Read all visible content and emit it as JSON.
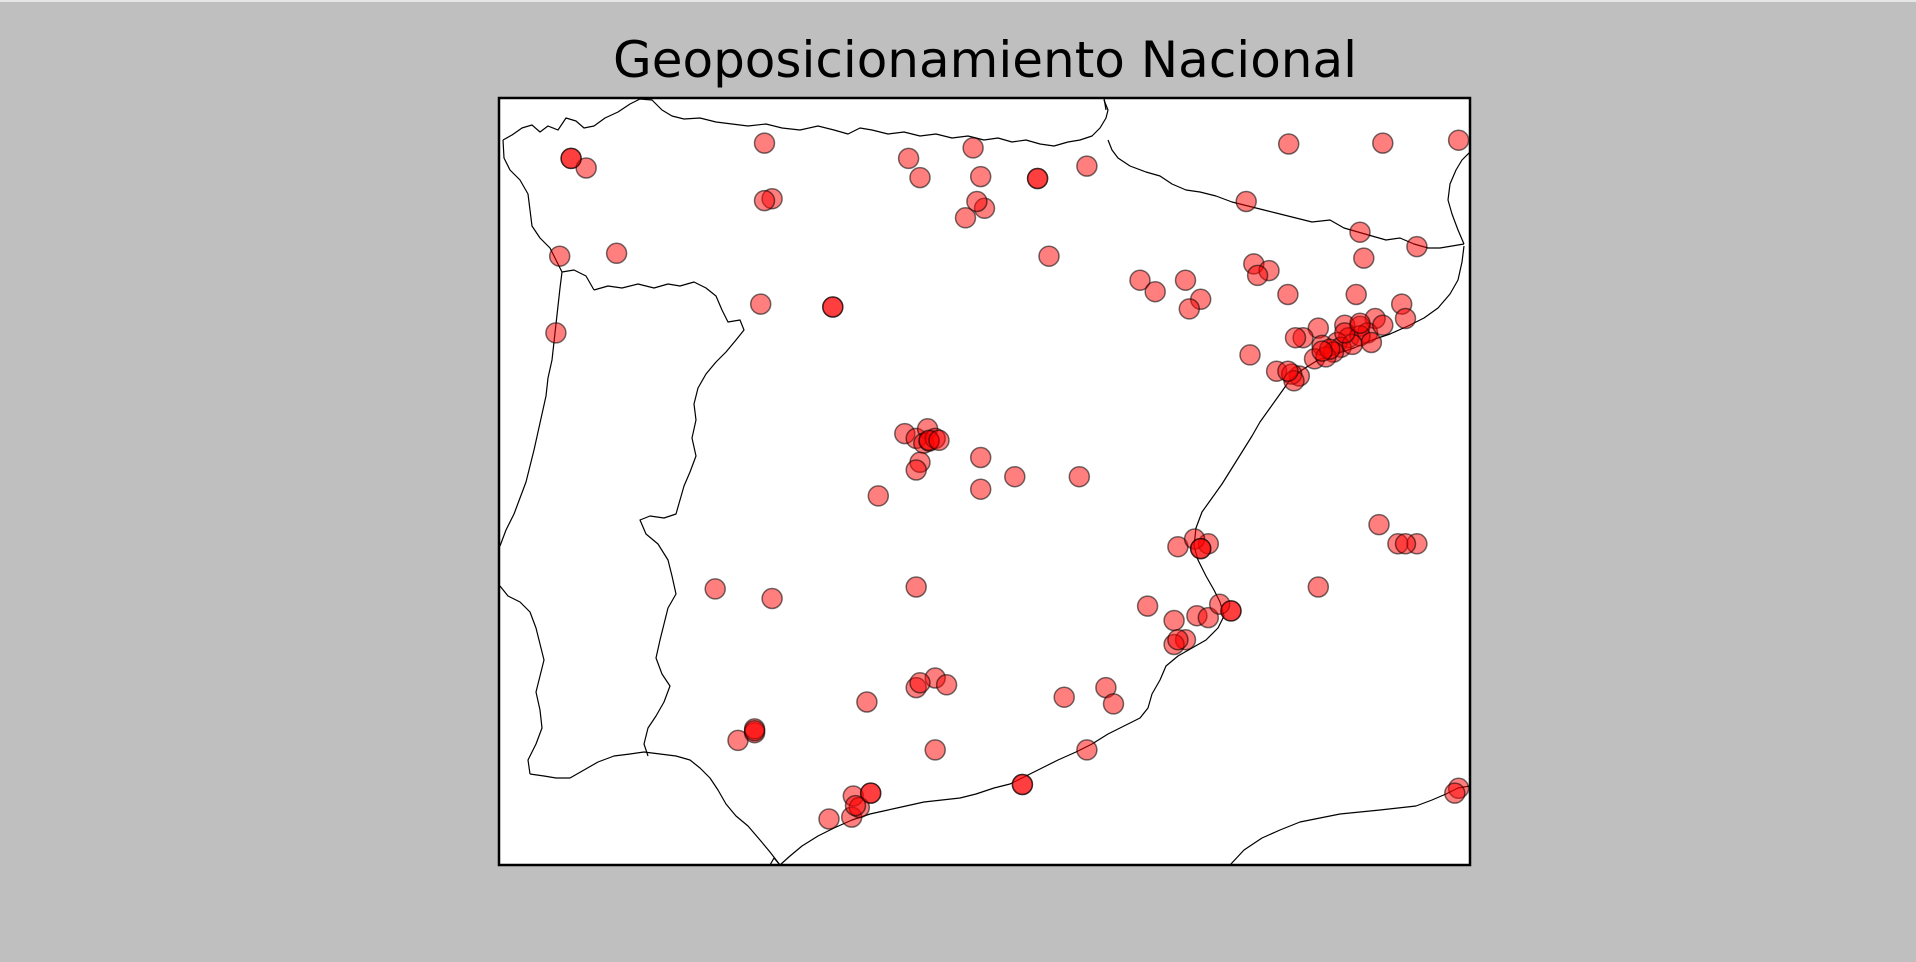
{
  "title": "Geoposicionamiento Nacional",
  "colors": {
    "figure_background": "#bfbfbf",
    "map_background": "#ffffff",
    "coastline": "#000000",
    "marker_fill": "#ff0000",
    "marker_edge": "#000000"
  },
  "chart_data": {
    "type": "scatter",
    "projection": "lon-lat",
    "xlim": [
      -9.35,
      3.45
    ],
    "ylim": [
      36.0,
      44.0
    ],
    "grid": false,
    "marker": "circle",
    "marker_alpha": 0.5,
    "points": [
      [
        -8.4,
        43.37
      ],
      [
        -8.2,
        43.27
      ],
      [
        -5.85,
        43.53
      ],
      [
        -3.95,
        43.37
      ],
      [
        -3.8,
        43.17
      ],
      [
        -3.1,
        43.48
      ],
      [
        -3.0,
        43.18
      ],
      [
        -2.95,
        42.85
      ],
      [
        -3.2,
        42.75
      ],
      [
        -2.25,
        43.16
      ],
      [
        -1.6,
        43.29
      ],
      [
        1.06,
        43.52
      ],
      [
        0.5,
        42.92
      ],
      [
        2.3,
        43.53
      ],
      [
        -8.55,
        42.35
      ],
      [
        -7.8,
        42.38
      ],
      [
        -5.75,
        42.95
      ],
      [
        -2.1,
        42.35
      ],
      [
        -0.9,
        42.1
      ],
      [
        -5.9,
        41.85
      ],
      [
        -4.95,
        41.82
      ],
      [
        -0.7,
        41.98
      ],
      [
        -0.3,
        42.1
      ],
      [
        -0.1,
        41.9
      ],
      [
        -0.25,
        41.8
      ],
      [
        -8.6,
        41.55
      ],
      [
        0.6,
        42.27
      ],
      [
        0.8,
        42.2
      ],
      [
        0.65,
        42.15
      ],
      [
        2.0,
        42.6
      ],
      [
        2.05,
        42.33
      ],
      [
        2.75,
        42.45
      ],
      [
        1.95,
        41.95
      ],
      [
        2.55,
        41.85
      ],
      [
        2.6,
        41.7
      ],
      [
        2.2,
        41.7
      ],
      [
        1.05,
        41.95
      ],
      [
        1.45,
        41.6
      ],
      [
        1.8,
        41.63
      ],
      [
        2.0,
        41.62
      ],
      [
        2.1,
        41.55
      ],
      [
        1.85,
        41.5
      ],
      [
        1.7,
        41.45
      ],
      [
        1.5,
        41.42
      ],
      [
        1.75,
        41.4
      ],
      [
        1.65,
        41.35
      ],
      [
        1.4,
        41.28
      ],
      [
        1.55,
        41.3
      ],
      [
        2.0,
        41.52
      ],
      [
        2.3,
        41.63
      ],
      [
        1.9,
        41.43
      ],
      [
        2.15,
        41.45
      ],
      [
        1.6,
        41.38
      ],
      [
        1.25,
        41.5
      ],
      [
        1.8,
        41.55
      ],
      [
        0.9,
        41.15
      ],
      [
        1.2,
        41.1
      ],
      [
        1.1,
        41.12
      ],
      [
        1.13,
        41.05
      ],
      [
        1.5,
        41.36
      ],
      [
        1.15,
        41.5
      ],
      [
        -4.0,
        40.5
      ],
      [
        -3.85,
        40.45
      ],
      [
        -3.7,
        40.55
      ],
      [
        -3.75,
        40.4
      ],
      [
        -3.68,
        40.42
      ],
      [
        -3.6,
        40.45
      ],
      [
        -3.8,
        40.2
      ],
      [
        -3.0,
        40.25
      ],
      [
        -2.55,
        40.05
      ],
      [
        -1.7,
        40.05
      ],
      [
        -3.85,
        40.12
      ],
      [
        -4.35,
        39.85
      ],
      [
        0.0,
        39.35
      ],
      [
        -0.4,
        39.32
      ],
      [
        -0.18,
        39.4
      ],
      [
        -0.1,
        39.3
      ],
      [
        2.5,
        39.35
      ],
      [
        2.75,
        39.35
      ],
      [
        2.25,
        39.55
      ],
      [
        0.3,
        38.65
      ],
      [
        1.45,
        38.9
      ],
      [
        -3.85,
        38.9
      ],
      [
        -6.5,
        38.88
      ],
      [
        -5.75,
        38.78
      ],
      [
        -0.8,
        38.7
      ],
      [
        -0.45,
        38.55
      ],
      [
        -0.15,
        38.6
      ],
      [
        0.0,
        38.58
      ],
      [
        0.15,
        38.72
      ],
      [
        -0.3,
        38.35
      ],
      [
        -0.45,
        38.3
      ],
      [
        -4.5,
        37.7
      ],
      [
        -3.6,
        37.95
      ],
      [
        -3.85,
        37.85
      ],
      [
        -3.45,
        37.88
      ],
      [
        -1.9,
        37.75
      ],
      [
        -1.35,
        37.85
      ],
      [
        -6.2,
        37.3
      ],
      [
        -5.98,
        37.38
      ],
      [
        -5.98,
        37.42
      ],
      [
        -3.6,
        37.2
      ],
      [
        -1.6,
        37.2
      ],
      [
        -1.25,
        37.68
      ],
      [
        -4.68,
        36.72
      ],
      [
        -4.45,
        36.75
      ],
      [
        -4.7,
        36.5
      ],
      [
        -2.45,
        36.84
      ],
      [
        -4.6,
        36.6
      ],
      [
        -5.0,
        36.48
      ],
      [
        3.3,
        36.8
      ],
      [
        3.25,
        36.75
      ]
    ],
    "emphasized_points": [
      [
        -8.4,
        43.37
      ],
      [
        -2.25,
        43.16
      ],
      [
        3.3,
        43.56
      ],
      [
        -3.05,
        42.92
      ],
      [
        -5.85,
        42.93
      ],
      [
        -4.95,
        41.82
      ],
      [
        2.0,
        41.65
      ],
      [
        0.55,
        41.32
      ],
      [
        1.05,
        41.15
      ],
      [
        -3.68,
        40.43
      ],
      [
        -3.55,
        40.43
      ],
      [
        -3.0,
        39.92
      ],
      [
        -0.1,
        39.3
      ],
      [
        2.6,
        39.35
      ],
      [
        0.3,
        38.65
      ],
      [
        -0.4,
        38.35
      ],
      [
        -3.8,
        37.9
      ],
      [
        -5.98,
        37.4
      ],
      [
        -4.45,
        36.75
      ],
      [
        -4.65,
        36.62
      ],
      [
        -2.45,
        36.84
      ]
    ]
  }
}
